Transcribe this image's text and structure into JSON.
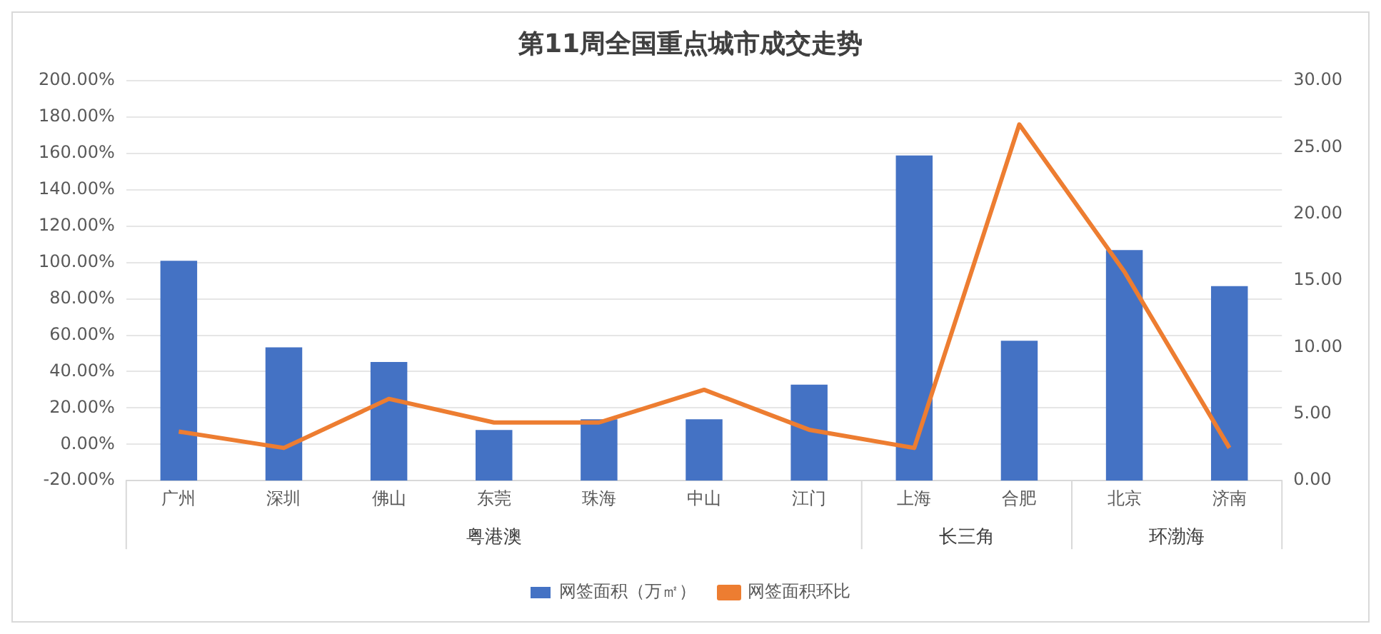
{
  "chart_data": {
    "type": "bar",
    "title": "第11周全国重点城市成交走势",
    "categories": [
      "广州",
      "深圳",
      "佛山",
      "东莞",
      "珠海",
      "中山",
      "江门",
      "上海",
      "合肥",
      "北京",
      "济南"
    ],
    "series": [
      {
        "name": "网签面积（万㎡）",
        "axis": "y2",
        "color": "#4472c4",
        "values": [
          16.5,
          10.0,
          8.9,
          3.8,
          4.6,
          4.6,
          7.2,
          24.4,
          10.5,
          17.3,
          14.6
        ]
      },
      {
        "name": "网签面积环比",
        "type": "line",
        "axis": "y",
        "color": "#ed7d31",
        "values": [
          7,
          -2,
          25,
          12,
          12,
          30,
          8,
          -2,
          176,
          95,
          -2
        ]
      }
    ],
    "ylim": [
      -20,
      200
    ],
    "yticks": [
      {
        "value": -20,
        "label": "-20.00%"
      },
      {
        "value": 0,
        "label": "0.00%"
      },
      {
        "value": 20,
        "label": "20.00%"
      },
      {
        "value": 40,
        "label": "40.00%"
      },
      {
        "value": 60,
        "label": "60.00%"
      },
      {
        "value": 80,
        "label": "80.00%"
      },
      {
        "value": 100,
        "label": "100.00%"
      },
      {
        "value": 120,
        "label": "120.00%"
      },
      {
        "value": 140,
        "label": "140.00%"
      },
      {
        "value": 160,
        "label": "160.00%"
      },
      {
        "value": 180,
        "label": "180.00%"
      },
      {
        "value": 200,
        "label": "200.00%"
      }
    ],
    "y2lim": [
      0,
      30
    ],
    "y2ticks": [
      {
        "value": 0,
        "label": "0.00"
      },
      {
        "value": 5,
        "label": "5.00"
      },
      {
        "value": 10,
        "label": "10.00"
      },
      {
        "value": 15,
        "label": "15.00"
      },
      {
        "value": 20,
        "label": "20.00"
      },
      {
        "value": 25,
        "label": "25.00"
      },
      {
        "value": 30,
        "label": "30.00"
      }
    ],
    "annotations": [
      "粤港澳",
      "长三角",
      "环渤海"
    ],
    "grid": "y",
    "legend": "bottom",
    "marker": "none"
  }
}
